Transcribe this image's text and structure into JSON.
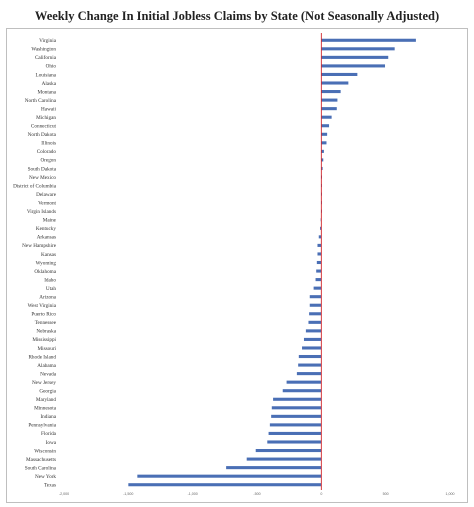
{
  "chart_data": {
    "type": "bar",
    "orientation": "horizontal",
    "title": "Weekly Change In Initial Jobless Claims by State (Not Seasonally Adjusted)",
    "xlabel": "",
    "ylabel": "",
    "xlim": [
      -2000,
      1000
    ],
    "x_ticks": [
      -2000,
      -1500,
      -1000,
      -500,
      0,
      500,
      1000
    ],
    "x_tick_labels": [
      "-2,000",
      "-1,500",
      "-1,000",
      "-500",
      "0",
      "500",
      "1,000"
    ],
    "grid": false,
    "bar_color": "#4a6fb5",
    "zero_line_color": "#d0262b",
    "categories": [
      "Virginia",
      "Washington",
      "California",
      "Ohio",
      "Louisiana",
      "Alaska",
      "Montana",
      "North Carolina",
      "Hawaii",
      "Michigan",
      "Connecticut",
      "North Dakota",
      "Illinois",
      "Colorado",
      "Oregon",
      "South Dakota",
      "New Mexico",
      "District of Columbia",
      "Delaware",
      "Vermont",
      "Virgin Islands",
      "Maine",
      "Kentucky",
      "Arkansas",
      "New Hampshire",
      "Kansas",
      "Wyoming",
      "Oklahoma",
      "Idaho",
      "Utah",
      "Arizona",
      "West Virginia",
      "Puerto Rico",
      "Tennessee",
      "Nebraska",
      "Mississippi",
      "Missouri",
      "Rhode Island",
      "Alabama",
      "Nevada",
      "New Jersey",
      "Georgia",
      "Maryland",
      "Minnesota",
      "Indiana",
      "Pennsylvania",
      "Florida",
      "Iowa",
      "Wisconsin",
      "Massachusetts",
      "South Carolina",
      "New York",
      "Texas"
    ],
    "values": [
      735,
      570,
      520,
      495,
      280,
      210,
      150,
      125,
      120,
      80,
      60,
      45,
      40,
      20,
      15,
      10,
      5,
      3,
      2,
      2,
      1,
      -5,
      -10,
      -20,
      -30,
      -30,
      -35,
      -40,
      -45,
      -60,
      -90,
      -90,
      -95,
      -100,
      -120,
      -135,
      -150,
      -175,
      -180,
      -190,
      -270,
      -300,
      -375,
      -385,
      -390,
      -400,
      -410,
      -420,
      -510,
      -580,
      -740,
      -1430,
      -1500
    ]
  }
}
